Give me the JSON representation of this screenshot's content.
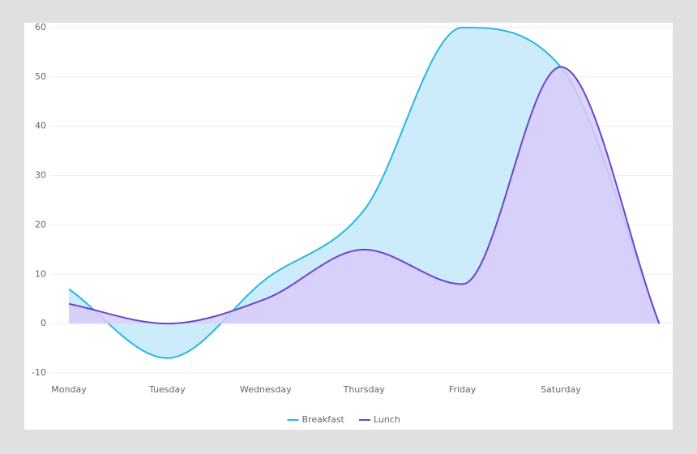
{
  "chart_data": {
    "type": "area",
    "categories": [
      "Monday",
      "Tuesday",
      "Wednesday",
      "Thursday",
      "Friday",
      "Saturday",
      null
    ],
    "series": [
      {
        "name": "Breakfast",
        "color": "#29b6e0",
        "fill": "#c3e9fa",
        "values": [
          7,
          -7,
          9,
          23,
          60,
          52,
          0
        ]
      },
      {
        "name": "Lunch",
        "color": "#6a45cf",
        "fill": "#d8cbf9",
        "values": [
          4,
          0,
          5,
          15,
          8,
          52,
          0
        ]
      }
    ],
    "ylim": [
      -10,
      60
    ],
    "yticks": [
      -10,
      0,
      10,
      20,
      30,
      40,
      50,
      60
    ],
    "grid": true,
    "legend": "bottom"
  }
}
